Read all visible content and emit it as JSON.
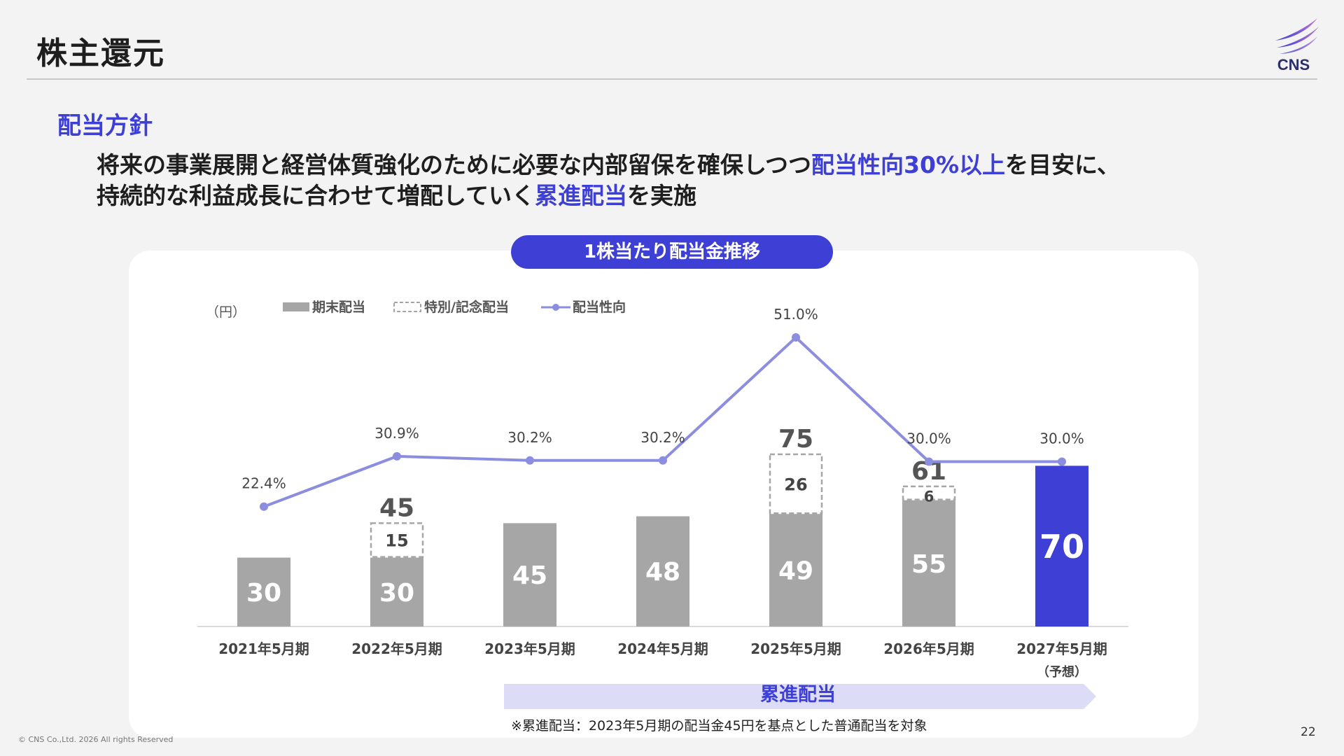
{
  "header": {
    "title": "株主還元",
    "logo_text": "CNS"
  },
  "section": {
    "title": "配当方針",
    "policy_line1_a": "将来の事業展開と経営体質強化のために必要な内部留保を確保しつつ",
    "policy_line1_hl": "配当性向30%以上",
    "policy_line1_b": "を目安に、",
    "policy_line2_a": "持続的な利益成長に合わせて増配していく",
    "policy_line2_hl": "累進配当",
    "policy_line2_b": "を実施"
  },
  "chart_title": "1株当たり配当金推移",
  "chart_data": {
    "type": "bar",
    "unit_label": "（円）",
    "categories": [
      "2021年5月期",
      "2022年5月期",
      "2023年5月期",
      "2024年5月期",
      "2025年5月期",
      "2026年5月期",
      "2027年5月期"
    ],
    "category_sublabels": [
      "",
      "",
      "",
      "",
      "",
      "",
      "（予想）"
    ],
    "series": [
      {
        "name": "期末配当",
        "values": [
          30,
          30,
          45,
          48,
          49,
          55,
          70
        ]
      },
      {
        "name": "特別/記念配当",
        "values": [
          0,
          15,
          0,
          0,
          26,
          6,
          0
        ]
      },
      {
        "name": "配当性向",
        "values": [
          22.4,
          30.9,
          30.2,
          30.2,
          51.0,
          30.0,
          30.0
        ]
      }
    ],
    "totals": [
      "",
      "45",
      "",
      "",
      "75",
      "61",
      ""
    ],
    "bar_labels": [
      "30",
      "30",
      "45",
      "48",
      "49",
      "55",
      "70"
    ],
    "special_labels": [
      "",
      "15",
      "",
      "",
      "26",
      "6",
      ""
    ],
    "payout_labels": [
      "22.4%",
      "30.9%",
      "30.2%",
      "30.2%",
      "51.0%",
      "30.0%",
      "30.0%"
    ],
    "highlight_index": 6,
    "colors": {
      "bar": "#a6a6a6",
      "highlight": "#3e3fd4",
      "line": "#8b8ddf",
      "special_border": "#a6a6a6"
    },
    "legend_position": "top-left"
  },
  "progressive_banner": {
    "label": "累進配当",
    "note": "※累進配当：2023年5月期の配当金45円を基点とした普通配当を対象"
  },
  "footer": {
    "copyright": "© CNS Co.,Ltd. 2026 All rights Reserved",
    "page_number": "22"
  }
}
